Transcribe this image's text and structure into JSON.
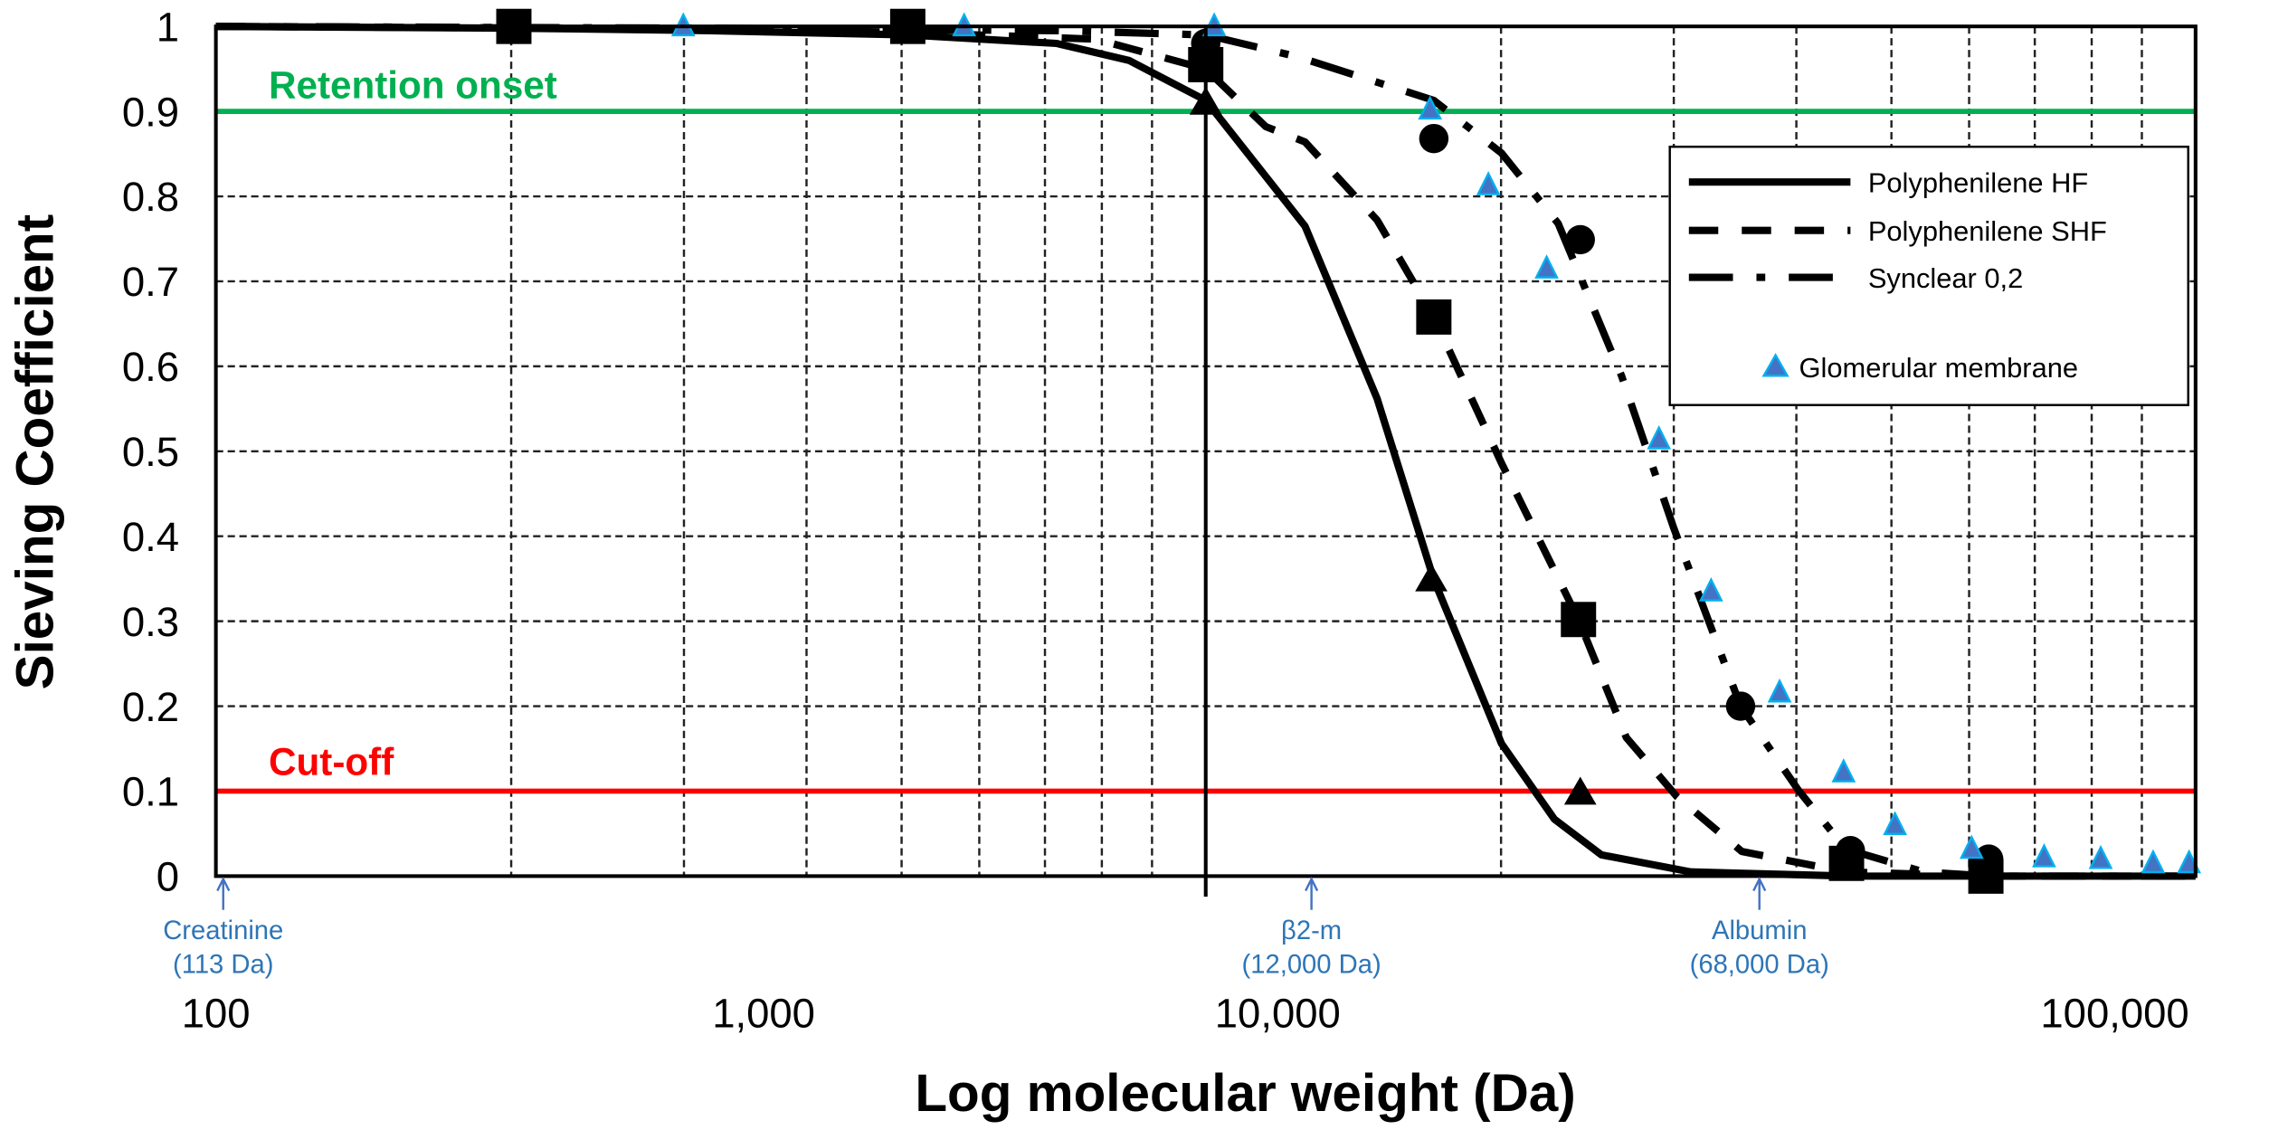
{
  "chart_data": {
    "type": "line",
    "xlabel": "Log molecular weight (Da)",
    "ylabel": "Sieving Coefficient",
    "xscale": "log",
    "xlim": [
      100,
      100000
    ],
    "ylim": [
      0,
      1
    ],
    "grid": true,
    "legend_position": "top-right",
    "xticks": [
      {
        "value": 100,
        "label": "100"
      },
      {
        "value": 1000,
        "label": "1,000"
      },
      {
        "value": 10000,
        "label": "10,000"
      },
      {
        "value": 100000,
        "label": "100,000"
      }
    ],
    "yticks": [
      {
        "value": 0,
        "label": "0"
      },
      {
        "value": 0.1,
        "label": "0.1"
      },
      {
        "value": 0.2,
        "label": "0.2"
      },
      {
        "value": 0.3,
        "label": "0.3"
      },
      {
        "value": 0.4,
        "label": "0.4"
      },
      {
        "value": 0.5,
        "label": "0.5"
      },
      {
        "value": 0.6,
        "label": "0.6"
      },
      {
        "value": 0.7,
        "label": "0.7"
      },
      {
        "value": 0.8,
        "label": "0.8"
      },
      {
        "value": 0.9,
        "label": "0.9"
      },
      {
        "value": 1,
        "label": "1"
      }
    ],
    "reference_lines": [
      {
        "label": "Retention onset",
        "y": 0.9,
        "color": "#00b050"
      },
      {
        "label": "Cut-off",
        "y": 0.1,
        "color": "#ff0000"
      }
    ],
    "series": [
      {
        "name": "Polyphenilene HF",
        "line_style": "solid",
        "marker": "triangle",
        "color": "#000000",
        "curve": [
          [
            100,
            1.0
          ],
          [
            400,
            0.998
          ],
          [
            1000,
            0.995
          ],
          [
            2500,
            0.99
          ],
          [
            5000,
            0.98
          ],
          [
            7000,
            0.96
          ],
          [
            10000,
            0.913
          ],
          [
            12600,
            0.765
          ],
          [
            14900,
            0.562
          ],
          [
            17000,
            0.349
          ],
          [
            19900,
            0.156
          ],
          [
            22500,
            0.067
          ],
          [
            25100,
            0.025
          ],
          [
            30900,
            0.005
          ],
          [
            44700,
            0.0
          ],
          [
            100000,
            0.0
          ]
        ],
        "points": [
          [
            10000,
            0.91
          ],
          [
            16900,
            0.349
          ],
          [
            23900,
            0.098
          ]
        ]
      },
      {
        "name": "Polyphenilene SHF",
        "line_style": "dashed",
        "marker": "square",
        "color": "#000000",
        "curve": [
          [
            100,
            1.0
          ],
          [
            1000,
            0.997
          ],
          [
            2500,
            0.993
          ],
          [
            6000,
            0.985
          ],
          [
            10000,
            0.95
          ],
          [
            11500,
            0.882
          ],
          [
            12600,
            0.864
          ],
          [
            14900,
            0.772
          ],
          [
            17000,
            0.658
          ],
          [
            19900,
            0.486
          ],
          [
            23800,
            0.302
          ],
          [
            26600,
            0.163
          ],
          [
            29900,
            0.094
          ],
          [
            34800,
            0.029
          ],
          [
            44300,
            0.005
          ],
          [
            61400,
            0.0
          ],
          [
            100000,
            0.0
          ]
        ],
        "points": [
          [
            400,
            1.0
          ],
          [
            2500,
            1.0
          ],
          [
            10000,
            0.955
          ],
          [
            17000,
            0.658
          ],
          [
            23800,
            0.302
          ],
          [
            44400,
            0.015
          ],
          [
            61400,
            0.0
          ]
        ]
      },
      {
        "name": "Synclear 0,2",
        "line_style": "dash-dot",
        "marker": "circle",
        "color": "#000000",
        "curve": [
          [
            100,
            1.0
          ],
          [
            1000,
            0.998
          ],
          [
            5000,
            0.995
          ],
          [
            10000,
            0.99
          ],
          [
            12400,
            0.964
          ],
          [
            17000,
            0.913
          ],
          [
            19900,
            0.851
          ],
          [
            22700,
            0.768
          ],
          [
            26300,
            0.589
          ],
          [
            29700,
            0.41
          ],
          [
            34700,
            0.2
          ],
          [
            39700,
            0.101
          ],
          [
            44300,
            0.032
          ],
          [
            53100,
            0.005
          ],
          [
            61700,
            0.0
          ],
          [
            100000,
            0.0
          ]
        ],
        "points": [
          [
            10000,
            0.98
          ],
          [
            17000,
            0.868
          ],
          [
            23900,
            0.749
          ],
          [
            34700,
            0.2
          ],
          [
            44800,
            0.03
          ],
          [
            61800,
            0.02
          ]
        ]
      },
      {
        "name": "Glomerular membrane",
        "line_style": "none",
        "marker": "triangle",
        "color": "#4472c4",
        "points": [
          [
            880,
            1.0
          ],
          [
            3250,
            1.0
          ],
          [
            10200,
            1.0
          ],
          [
            16850,
            0.902
          ],
          [
            19300,
            0.813
          ],
          [
            22100,
            0.715
          ],
          [
            28700,
            0.514
          ],
          [
            32400,
            0.335
          ],
          [
            38000,
            0.216
          ],
          [
            44100,
            0.122
          ],
          [
            49700,
            0.06
          ],
          [
            59400,
            0.032
          ],
          [
            70300,
            0.022
          ],
          [
            80200,
            0.02
          ],
          [
            90600,
            0.015
          ],
          [
            98500,
            0.015
          ]
        ]
      }
    ],
    "annotations": [
      {
        "label": "Creatinine",
        "sublabel": "(113 Da)",
        "value": 113
      },
      {
        "label": "β2-m",
        "sublabel": "(12,000 Da)",
        "value": 12000
      },
      {
        "label": "Albumin",
        "sublabel": "(68,000 Da)",
        "value": 68000
      }
    ]
  }
}
